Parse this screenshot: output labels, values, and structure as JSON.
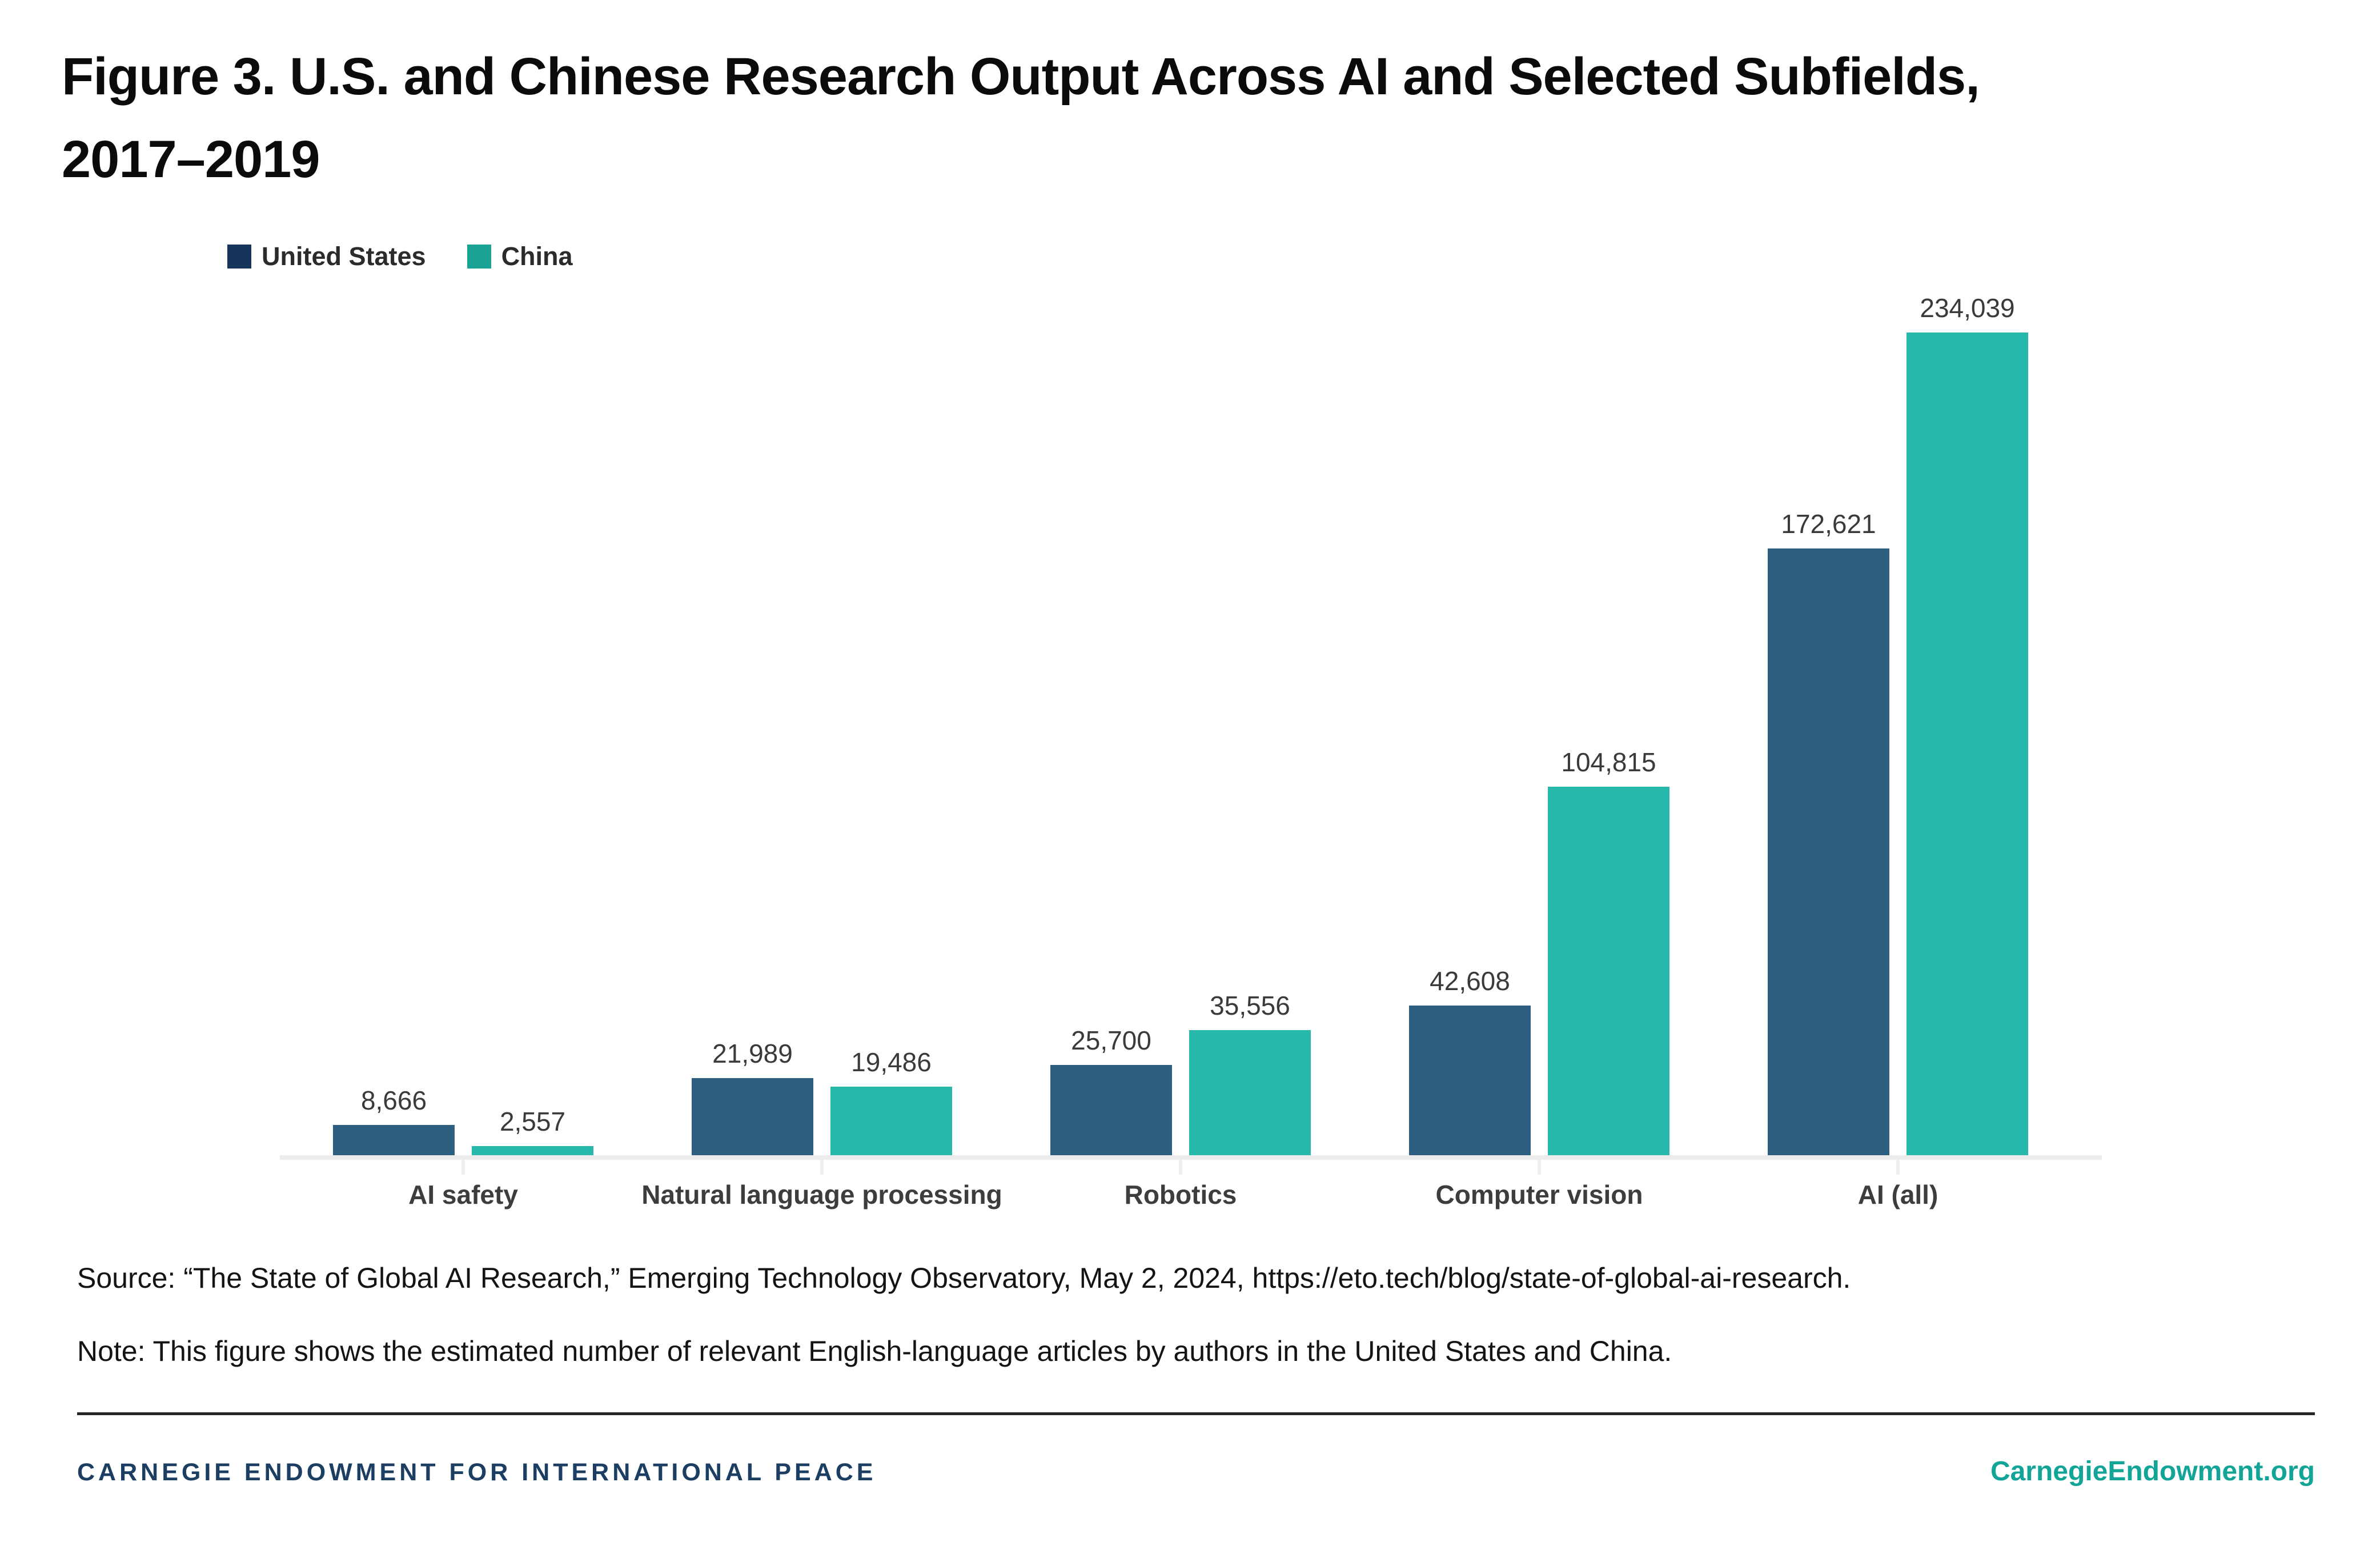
{
  "figure": {
    "title_line1": "Figure 3. U.S. and Chinese Research Output Across AI and Selected Subfields,",
    "title_line2": "2017–2019"
  },
  "legend": {
    "items": [
      {
        "label": "United States",
        "swatch_color": "#16355a"
      },
      {
        "label": "China",
        "swatch_color": "#1aa295"
      }
    ]
  },
  "chart_data": {
    "type": "bar",
    "title": "Figure 3. U.S. and Chinese Research Output Across AI and Selected Subfields, 2017–2019",
    "categories": [
      "AI safety",
      "Natural language processing",
      "Robotics",
      "Computer vision",
      "AI (all)"
    ],
    "series": [
      {
        "name": "United States",
        "color": "#2e5f80",
        "values": [
          8666,
          21989,
          25700,
          42608,
          172621
        ]
      },
      {
        "name": "China",
        "color": "#27b7ab",
        "values": [
          2557,
          19486,
          35556,
          104815,
          234039
        ]
      }
    ],
    "xlabel": "",
    "ylabel": "",
    "ylim": [
      0,
      234039
    ],
    "grid": false,
    "value_labels_shown": true,
    "legend_position": "top-left"
  },
  "source_text": "Source: “The State of Global AI Research,” Emerging Technology Observatory, May 2, 2024, https://eto.tech/blog/state-of-global-ai-research.",
  "note_text": "Note: This figure shows the estimated number of relevant English-language articles by authors in the United States and China.",
  "footer": {
    "organization": "CARNEGIE ENDOWMENT FOR INTERNATIONAL PEACE",
    "website": "CarnegieEndowment.org"
  }
}
